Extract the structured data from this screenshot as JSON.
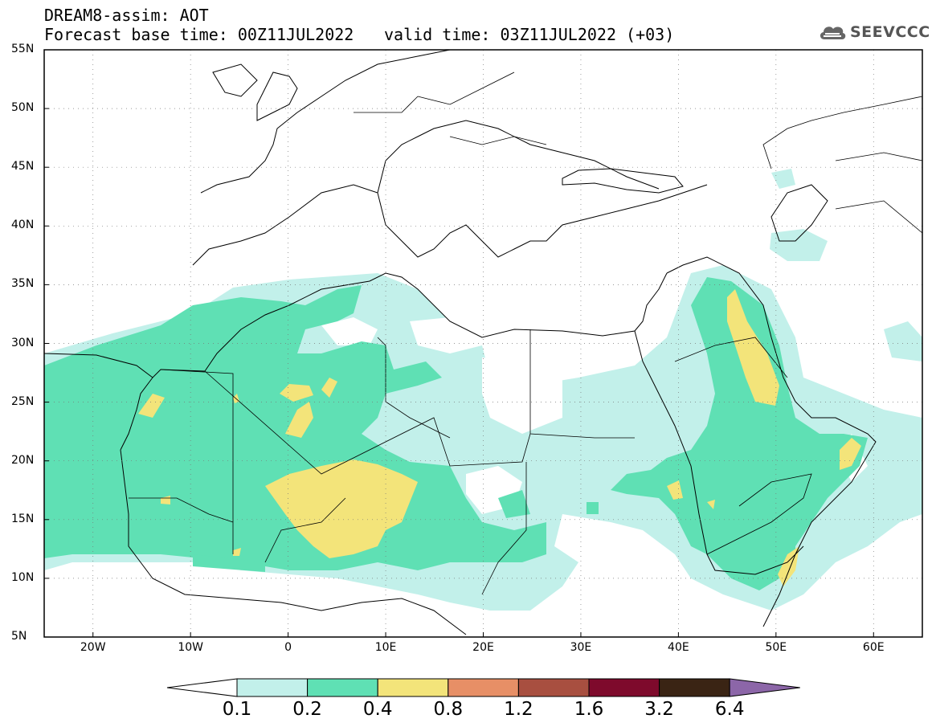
{
  "header": {
    "title": "DREAM8-assim: AOT",
    "base_time": "Forecast base time: 00Z11JUL2022",
    "valid_time": "valid time: 03Z11JUL2022 (+03)",
    "logo_text": "SEEVCCC"
  },
  "map": {
    "projection": "lat-lon",
    "lon_range": [
      -25,
      65
    ],
    "lat_range": [
      5,
      55
    ],
    "lat_labels": [
      "55N",
      "50N",
      "45N",
      "40N",
      "35N",
      "30N",
      "25N",
      "20N",
      "15N",
      "10N",
      "5N"
    ],
    "lat_values": [
      55,
      50,
      45,
      40,
      35,
      30,
      25,
      20,
      15,
      10,
      5
    ],
    "lon_labels": [
      "20W",
      "10W",
      "0",
      "10E",
      "20E",
      "30E",
      "40E",
      "50E",
      "60E"
    ],
    "lon_values": [
      -20,
      -10,
      0,
      10,
      20,
      30,
      40,
      50,
      60
    ],
    "grid": true
  },
  "colorbar": {
    "labels": [
      "0.1",
      "0.2",
      "0.4",
      "0.8",
      "1.2",
      "1.6",
      "3.2",
      "6.4"
    ],
    "colors": [
      "#c2f0ea",
      "#5fe0b4",
      "#f3e47a",
      "#e78f66",
      "#a84f40",
      "#7e0a2c",
      "#3a2414",
      "#8c66a8"
    ],
    "under_color": "#ffffff"
  },
  "colors": {
    "level1": "#c2f0ea",
    "level2": "#5fe0b4",
    "level3": "#f3e47a"
  }
}
